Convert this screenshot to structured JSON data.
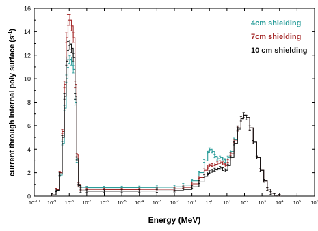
{
  "chart_data": {
    "type": "line",
    "xlabel": "Energy (MeV)",
    "ylabel_main": "current through internal poly surface (s",
    "ylabel_exp": "-1",
    "ylabel_close": ")",
    "x_scale": "log",
    "x_range_exp": [
      -10,
      6
    ],
    "ylim": [
      0,
      16
    ],
    "y_ticks": [
      "0",
      "2",
      "4",
      "6",
      "8",
      "10",
      "12",
      "14",
      "16"
    ],
    "x_ticks": [
      {
        "base": "10",
        "exp": "-10"
      },
      {
        "base": "10",
        "exp": "-9"
      },
      {
        "base": "10",
        "exp": "-8"
      },
      {
        "base": "10",
        "exp": "-7"
      },
      {
        "base": "10",
        "exp": "-6"
      },
      {
        "base": "10",
        "exp": "-5"
      },
      {
        "base": "10",
        "exp": "-4"
      },
      {
        "base": "10",
        "exp": "-3"
      },
      {
        "base": "10",
        "exp": "-2"
      },
      {
        "base": "10",
        "exp": "-1"
      },
      {
        "base": "10",
        "exp": "0"
      },
      {
        "base": "10",
        "exp": "1"
      },
      {
        "base": "10",
        "exp": "2"
      },
      {
        "base": "10",
        "exp": "3"
      },
      {
        "base": "10",
        "exp": "4"
      },
      {
        "base": "10",
        "exp": "5"
      },
      {
        "base": "10",
        "exp": "6"
      }
    ],
    "legend_position": "top-right",
    "series": [
      {
        "name": "4cm shielding",
        "color": "#2a9d9a",
        "points": [
          [
            -9.0,
            0.1
          ],
          [
            -8.75,
            0.5
          ],
          [
            -8.55,
            1.8
          ],
          [
            -8.4,
            4.5
          ],
          [
            -8.28,
            7.5
          ],
          [
            -8.17,
            10.0
          ],
          [
            -8.07,
            11.3
          ],
          [
            -7.97,
            11.6
          ],
          [
            -7.87,
            11.5
          ],
          [
            -7.77,
            10.8
          ],
          [
            -7.67,
            8.0
          ],
          [
            -7.57,
            3.0
          ],
          [
            -7.47,
            1.0
          ],
          [
            -7.35,
            0.75
          ],
          [
            -7.0,
            0.72
          ],
          [
            -6.0,
            0.72
          ],
          [
            -5.0,
            0.73
          ],
          [
            -4.0,
            0.74
          ],
          [
            -3.0,
            0.76
          ],
          [
            -2.0,
            0.8
          ],
          [
            -1.5,
            0.95
          ],
          [
            -1.0,
            1.3
          ],
          [
            -0.6,
            2.0
          ],
          [
            -0.3,
            3.0
          ],
          [
            -0.1,
            3.7
          ],
          [
            0.0,
            4.0
          ],
          [
            0.15,
            3.8
          ],
          [
            0.3,
            3.4
          ],
          [
            0.45,
            3.2
          ],
          [
            0.6,
            3.3
          ],
          [
            0.75,
            3.2
          ],
          [
            0.9,
            3.0
          ],
          [
            1.05,
            3.3
          ],
          [
            1.2,
            3.8
          ],
          [
            1.4,
            4.8
          ],
          [
            1.6,
            5.8
          ],
          [
            1.8,
            6.6
          ],
          [
            1.95,
            6.9
          ],
          [
            2.1,
            6.7
          ],
          [
            2.3,
            5.8
          ],
          [
            2.5,
            4.6
          ],
          [
            2.7,
            3.3
          ],
          [
            2.9,
            2.2
          ],
          [
            3.1,
            1.3
          ],
          [
            3.3,
            0.6
          ],
          [
            3.5,
            0.25
          ],
          [
            3.7,
            0.08
          ],
          [
            4.0,
            0.02
          ]
        ]
      },
      {
        "name": "7cm shielding",
        "color": "#a52a2a",
        "points": [
          [
            -9.0,
            0.1
          ],
          [
            -8.75,
            0.55
          ],
          [
            -8.55,
            2.0
          ],
          [
            -8.4,
            5.5
          ],
          [
            -8.28,
            9.5
          ],
          [
            -8.17,
            13.5
          ],
          [
            -8.07,
            15.0
          ],
          [
            -7.97,
            15.0
          ],
          [
            -7.87,
            14.5
          ],
          [
            -7.77,
            13.5
          ],
          [
            -7.67,
            9.5
          ],
          [
            -7.57,
            3.5
          ],
          [
            -7.47,
            1.0
          ],
          [
            -7.35,
            0.6
          ],
          [
            -7.0,
            0.57
          ],
          [
            -6.0,
            0.56
          ],
          [
            -5.0,
            0.56
          ],
          [
            -4.0,
            0.57
          ],
          [
            -3.0,
            0.58
          ],
          [
            -2.0,
            0.62
          ],
          [
            -1.5,
            0.75
          ],
          [
            -1.0,
            1.05
          ],
          [
            -0.6,
            1.6
          ],
          [
            -0.3,
            2.2
          ],
          [
            -0.1,
            2.5
          ],
          [
            0.0,
            2.6
          ],
          [
            0.15,
            2.65
          ],
          [
            0.3,
            2.7
          ],
          [
            0.45,
            2.8
          ],
          [
            0.6,
            2.9
          ],
          [
            0.75,
            2.8
          ],
          [
            0.9,
            2.6
          ],
          [
            1.05,
            3.0
          ],
          [
            1.2,
            3.6
          ],
          [
            1.4,
            4.7
          ],
          [
            1.6,
            5.8
          ],
          [
            1.8,
            6.6
          ],
          [
            1.95,
            6.9
          ],
          [
            2.1,
            6.7
          ],
          [
            2.3,
            5.8
          ],
          [
            2.5,
            4.6
          ],
          [
            2.7,
            3.3
          ],
          [
            2.9,
            2.2
          ],
          [
            3.1,
            1.3
          ],
          [
            3.3,
            0.6
          ],
          [
            3.5,
            0.25
          ],
          [
            3.7,
            0.08
          ],
          [
            4.0,
            0.02
          ]
        ]
      },
      {
        "name": "10 cm shielding",
        "color": "#111111",
        "points": [
          [
            -9.0,
            0.1
          ],
          [
            -8.75,
            0.5
          ],
          [
            -8.55,
            1.9
          ],
          [
            -8.4,
            5.0
          ],
          [
            -8.28,
            8.5
          ],
          [
            -8.17,
            11.5
          ],
          [
            -8.07,
            12.8
          ],
          [
            -7.97,
            12.9
          ],
          [
            -7.87,
            12.6
          ],
          [
            -7.77,
            11.8
          ],
          [
            -7.67,
            8.5
          ],
          [
            -7.57,
            3.2
          ],
          [
            -7.47,
            0.9
          ],
          [
            -7.35,
            0.45
          ],
          [
            -7.0,
            0.42
          ],
          [
            -6.0,
            0.42
          ],
          [
            -5.0,
            0.42
          ],
          [
            -4.0,
            0.43
          ],
          [
            -3.0,
            0.44
          ],
          [
            -2.0,
            0.47
          ],
          [
            -1.5,
            0.57
          ],
          [
            -1.0,
            0.8
          ],
          [
            -0.6,
            1.2
          ],
          [
            -0.3,
            1.7
          ],
          [
            -0.1,
            1.95
          ],
          [
            0.0,
            2.05
          ],
          [
            0.15,
            2.15
          ],
          [
            0.3,
            2.25
          ],
          [
            0.45,
            2.35
          ],
          [
            0.6,
            2.4
          ],
          [
            0.75,
            2.3
          ],
          [
            0.9,
            2.2
          ],
          [
            1.05,
            2.6
          ],
          [
            1.2,
            3.3
          ],
          [
            1.4,
            4.5
          ],
          [
            1.6,
            5.7
          ],
          [
            1.8,
            6.6
          ],
          [
            1.95,
            6.9
          ],
          [
            2.1,
            6.7
          ],
          [
            2.3,
            5.8
          ],
          [
            2.5,
            4.6
          ],
          [
            2.7,
            3.3
          ],
          [
            2.9,
            2.2
          ],
          [
            3.1,
            1.3
          ],
          [
            3.3,
            0.6
          ],
          [
            3.5,
            0.25
          ],
          [
            3.7,
            0.08
          ],
          [
            4.0,
            0.02
          ]
        ]
      }
    ]
  }
}
